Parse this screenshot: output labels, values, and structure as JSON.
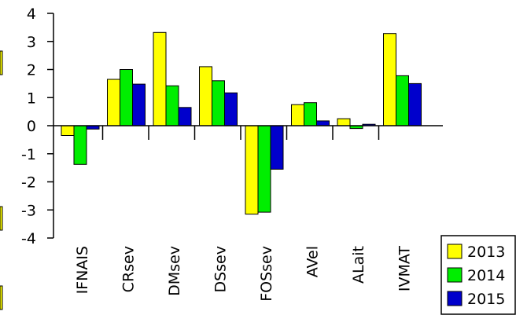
{
  "chart_data": {
    "type": "bar",
    "categories": [
      "IFNAIS",
      "CRsev",
      "DMsev",
      "DSsev",
      "FOSsev",
      "AVel",
      "ALait",
      "IVMAT"
    ],
    "series": [
      {
        "name": "2013",
        "color": "#ffff00",
        "values": [
          -0.35,
          1.65,
          3.32,
          2.1,
          -3.15,
          0.75,
          0.25,
          3.28
        ]
      },
      {
        "name": "2014",
        "color": "#00ee00",
        "values": [
          -1.38,
          2.0,
          1.42,
          1.6,
          -3.08,
          0.82,
          -0.1,
          1.78
        ]
      },
      {
        "name": "2015",
        "color": "#0000cc",
        "values": [
          -0.12,
          1.48,
          0.65,
          1.17,
          -1.55,
          0.17,
          0.05,
          1.5
        ]
      }
    ],
    "ylim": [
      -4,
      4
    ],
    "yticks": [
      "4",
      "3",
      "2",
      "1",
      "0",
      "-1",
      "-2",
      "-3",
      "-4"
    ],
    "xlabel": "",
    "ylabel": "",
    "title": "",
    "grid": false,
    "legend_position": "bottom-right"
  }
}
